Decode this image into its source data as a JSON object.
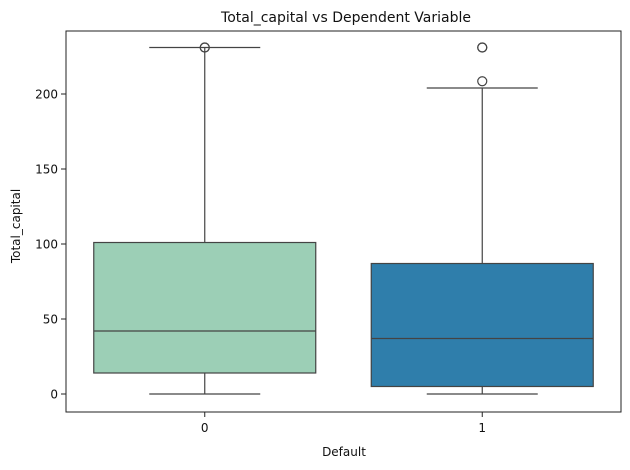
{
  "chart_data": {
    "type": "box",
    "title": "Total_capital vs Dependent Variable",
    "xlabel": "Default",
    "ylabel": "Total_capital",
    "categories": [
      "0",
      "1"
    ],
    "ylim": [
      -12,
      242
    ],
    "yticks": [
      0,
      50,
      100,
      150,
      200
    ],
    "grid": false,
    "legend": "none",
    "boxes": [
      {
        "category": "0",
        "whisker_low": 0,
        "q1": 14,
        "median": 42,
        "q3": 101,
        "whisker_high": 231,
        "outliers": [
          231,
          231
        ],
        "color": "#9ccfb6"
      },
      {
        "category": "1",
        "whisker_low": 0,
        "q1": 5,
        "median": 37,
        "q3": 87,
        "whisker_high": 204,
        "outliers": [
          208.5,
          231,
          231
        ],
        "color": "#2f7eab"
      }
    ],
    "colors": {
      "axis": "#222222",
      "box_edge": "#444444",
      "text": "#111111"
    }
  }
}
